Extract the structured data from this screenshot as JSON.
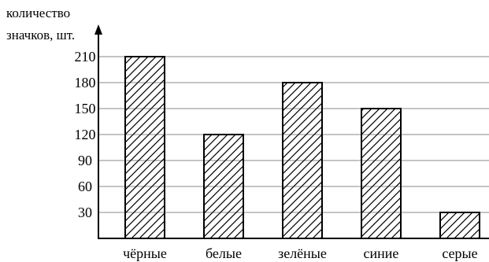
{
  "chart_data": {
    "type": "bar",
    "ylabel_lines": [
      "количество",
      "значков, шт."
    ],
    "xlabel": "",
    "categories": [
      "чёрные",
      "белые",
      "зелёные",
      "синие",
      "серые"
    ],
    "values": [
      210,
      120,
      180,
      150,
      30
    ],
    "yticks": [
      30,
      60,
      90,
      120,
      150,
      180,
      210
    ],
    "ylim": [
      0,
      225
    ],
    "grid": true,
    "bar_fill": "diagonal-hatch",
    "colors": {
      "bar_stroke": "#000000",
      "hatch": "#000000",
      "grid": "#8a8a8a",
      "axis": "#000000"
    }
  }
}
